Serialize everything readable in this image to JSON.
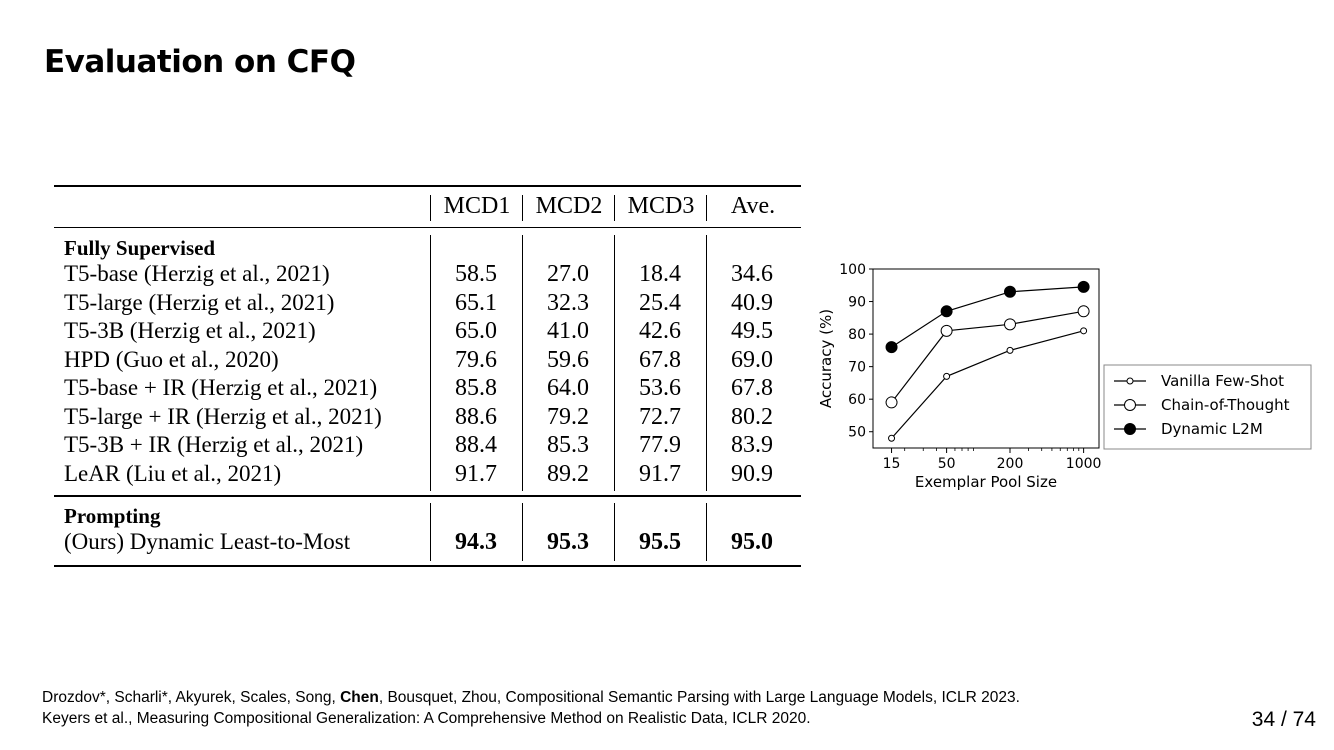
{
  "slide": {
    "title": "Evaluation on CFQ",
    "page_number": "34 / 74"
  },
  "table": {
    "columns": [
      "MCD1",
      "MCD2",
      "MCD3",
      "Ave."
    ],
    "sections": [
      {
        "header": "Fully Supervised",
        "rows": [
          {
            "label": "T5-base (Herzig et al., 2021)",
            "values": [
              "58.5",
              "27.0",
              "18.4",
              "34.6"
            ]
          },
          {
            "label": "T5-large (Herzig et al., 2021)",
            "values": [
              "65.1",
              "32.3",
              "25.4",
              "40.9"
            ]
          },
          {
            "label": "T5-3B (Herzig et al., 2021)",
            "values": [
              "65.0",
              "41.0",
              "42.6",
              "49.5"
            ]
          },
          {
            "label": "HPD (Guo et al., 2020)",
            "values": [
              "79.6",
              "59.6",
              "67.8",
              "69.0"
            ]
          },
          {
            "label": "T5-base + IR (Herzig et al., 2021)",
            "values": [
              "85.8",
              "64.0",
              "53.6",
              "67.8"
            ]
          },
          {
            "label": "T5-large + IR (Herzig et al., 2021)",
            "values": [
              "88.6",
              "79.2",
              "72.7",
              "80.2"
            ]
          },
          {
            "label": "T5-3B + IR (Herzig et al., 2021)",
            "values": [
              "88.4",
              "85.3",
              "77.9",
              "83.9"
            ]
          },
          {
            "label": "LeAR (Liu et al., 2021)",
            "values": [
              "91.7",
              "89.2",
              "91.7",
              "90.9"
            ]
          }
        ]
      },
      {
        "header": "Prompting",
        "rows": [
          {
            "label": "(Ours) Dynamic Least-to-Most",
            "values": [
              "94.3",
              "95.3",
              "95.5",
              "95.0"
            ],
            "bold": true
          }
        ]
      }
    ]
  },
  "chart_data": {
    "type": "line",
    "x": [
      15,
      50,
      200,
      1000
    ],
    "x_tick_labels": [
      "15",
      "50",
      "200",
      "1000"
    ],
    "x_scale": "log",
    "xlabel": "Exemplar Pool Size",
    "ylabel": "Accuracy (%)",
    "ylim": [
      45,
      100
    ],
    "y_ticks": [
      50,
      60,
      70,
      80,
      90,
      100
    ],
    "legend_position": "right",
    "series": [
      {
        "name": "Vanilla Few-Shot",
        "values": [
          48,
          67,
          75,
          81
        ],
        "marker": "small-open-circle"
      },
      {
        "name": "Chain-of-Thought",
        "values": [
          59,
          81,
          83,
          87
        ],
        "marker": "open-circle"
      },
      {
        "name": "Dynamic L2M",
        "values": [
          76,
          87,
          93,
          94.5
        ],
        "marker": "filled-circle"
      }
    ]
  },
  "footer": {
    "line1_pre": "Drozdov*, Scharli*, Akyurek, Scales, Song, ",
    "line1_bold": "Chen",
    "line1_post": ", Bousquet, Zhou, Compositional Semantic Parsing with Large Language Models, ICLR 2023.",
    "line2": "Keyers et al., Measuring Compositional Generalization: A Comprehensive Method on Realistic Data, ICLR 2020."
  }
}
